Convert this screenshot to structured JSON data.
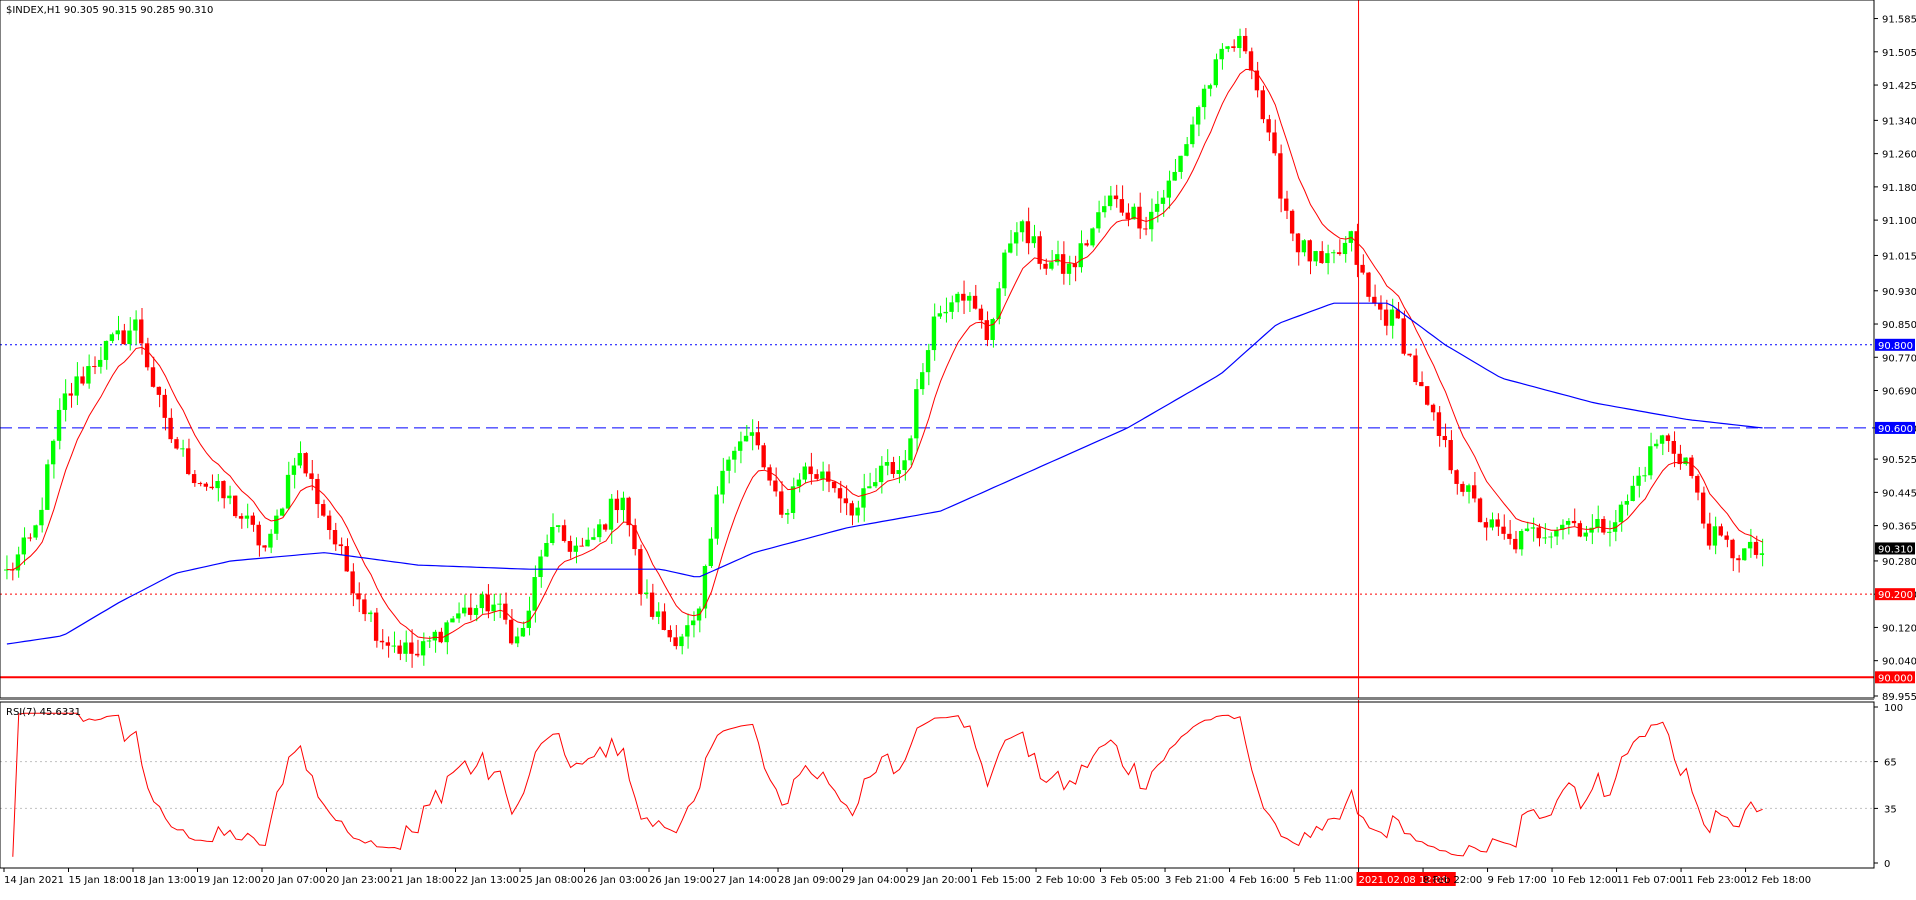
{
  "chart_data": [
    {
      "type": "candlestick",
      "title": "$INDEX,H1  90.305 90.315 90.285 90.310",
      "ylim": [
        89.955,
        91.62
      ],
      "y_ticks": [
        "91.585",
        "91.505",
        "91.425",
        "91.340",
        "91.260",
        "91.180",
        "91.100",
        "91.015",
        "90.930",
        "90.850",
        "90.770",
        "90.690",
        "90.600",
        "90.525",
        "90.445",
        "90.365",
        "90.280",
        "90.200",
        "90.120",
        "90.040",
        "89.955"
      ],
      "x_ticks": [
        "14 Jan 2021",
        "15 Jan 18:00",
        "18 Jan 13:00",
        "19 Jan 12:00",
        "20 Jan 07:00",
        "20 Jan 23:00",
        "21 Jan 18:00",
        "22 Jan 13:00",
        "25 Jan 08:00",
        "26 Jan 03:00",
        "26 Jan 19:00",
        "27 Jan 14:00",
        "28 Jan 09:00",
        "29 Jan 04:00",
        "29 Jan 20:00",
        "1 Feb 15:00",
        "2 Feb 10:00",
        "3 Feb 05:00",
        "3 Feb 21:00",
        "4 Feb 16:00",
        "5 Feb 11:00",
        "2021.02.08 12:00",
        "8 Feb 22:00",
        "9 Feb 17:00",
        "10 Feb 12:00",
        "11 Feb 07:00",
        "11 Feb 23:00",
        "12 Feb 18:00"
      ],
      "close_key": [
        [
          0,
          90.25
        ],
        [
          0.015,
          90.34
        ],
        [
          0.03,
          90.66
        ],
        [
          0.05,
          90.78
        ],
        [
          0.07,
          90.85
        ],
        [
          0.085,
          90.6
        ],
        [
          0.1,
          90.49
        ],
        [
          0.12,
          90.42
        ],
        [
          0.14,
          90.3
        ],
        [
          0.155,
          90.55
        ],
        [
          0.165,
          90.45
        ],
        [
          0.18,
          90.28
        ],
        [
          0.2,
          90.1
        ],
        [
          0.22,
          90.05
        ],
        [
          0.24,
          90.15
        ],
        [
          0.26,
          90.18
        ],
        [
          0.275,
          90.08
        ],
        [
          0.29,
          90.35
        ],
        [
          0.31,
          90.3
        ],
        [
          0.33,
          90.45
        ],
        [
          0.34,
          90.2
        ],
        [
          0.355,
          90.1
        ],
        [
          0.37,
          90.12
        ],
        [
          0.385,
          90.55
        ],
        [
          0.4,
          90.58
        ],
        [
          0.415,
          90.38
        ],
        [
          0.425,
          90.5
        ],
        [
          0.44,
          90.48
        ],
        [
          0.455,
          90.4
        ],
        [
          0.47,
          90.5
        ],
        [
          0.48,
          90.5
        ],
        [
          0.495,
          90.85
        ],
        [
          0.51,
          90.95
        ],
        [
          0.525,
          90.82
        ],
        [
          0.54,
          91.1
        ],
        [
          0.555,
          91.0
        ],
        [
          0.57,
          90.98
        ],
        [
          0.59,
          91.15
        ],
        [
          0.61,
          91.1
        ],
        [
          0.625,
          91.2
        ],
        [
          0.64,
          91.4
        ],
        [
          0.655,
          91.52
        ],
        [
          0.665,
          91.52
        ],
        [
          0.675,
          91.3
        ],
        [
          0.69,
          91.05
        ],
        [
          0.705,
          90.98
        ],
        [
          0.72,
          91.05
        ],
        [
          0.73,
          90.9
        ],
        [
          0.745,
          90.85
        ],
        [
          0.76,
          90.65
        ],
        [
          0.775,
          90.5
        ],
        [
          0.79,
          90.38
        ],
        [
          0.805,
          90.32
        ],
        [
          0.82,
          90.35
        ],
        [
          0.835,
          90.38
        ],
        [
          0.85,
          90.35
        ],
        [
          0.865,
          90.4
        ],
        [
          0.885,
          90.58
        ],
        [
          0.9,
          90.52
        ],
        [
          0.91,
          90.35
        ],
        [
          0.925,
          90.3
        ],
        [
          0.94,
          90.3
        ]
      ],
      "ema_fast_label": "",
      "ma_slow_key": [
        [
          0,
          90.08
        ],
        [
          0.03,
          90.1
        ],
        [
          0.06,
          90.18
        ],
        [
          0.09,
          90.25
        ],
        [
          0.12,
          90.28
        ],
        [
          0.17,
          90.3
        ],
        [
          0.22,
          90.27
        ],
        [
          0.28,
          90.26
        ],
        [
          0.32,
          90.26
        ],
        [
          0.35,
          90.26
        ],
        [
          0.37,
          90.24
        ],
        [
          0.4,
          90.3
        ],
        [
          0.45,
          90.36
        ],
        [
          0.5,
          90.4
        ],
        [
          0.55,
          90.5
        ],
        [
          0.6,
          90.6
        ],
        [
          0.65,
          90.73
        ],
        [
          0.68,
          90.85
        ],
        [
          0.71,
          90.9
        ],
        [
          0.74,
          90.9
        ],
        [
          0.77,
          90.8
        ],
        [
          0.8,
          90.72
        ],
        [
          0.85,
          90.66
        ],
        [
          0.9,
          90.62
        ],
        [
          0.94,
          90.6
        ]
      ],
      "horizontal_levels": [
        {
          "label": "90.800",
          "value": 90.8,
          "color": "#0000ff",
          "style": "dotted"
        },
        {
          "label": "90.600",
          "value": 90.6,
          "color": "#0000ff",
          "style": "dashed"
        },
        {
          "label": "90.200",
          "value": 90.2,
          "color": "#ff0000",
          "style": "dotted"
        },
        {
          "label": "90.000",
          "value": 90.0,
          "color": "#ff0000",
          "style": "solid"
        }
      ],
      "last_price_label": "90.310",
      "last_price": 90.31,
      "vertical_marker_x": "2021.02.08 12:00",
      "colors": {
        "bull": "#00ff00",
        "bear": "#ff0000",
        "fast_ma": "#ff0000",
        "slow_ma": "#0000ff"
      }
    },
    {
      "type": "line",
      "title": "RSI(7) 45.6331",
      "ylim": [
        0,
        100
      ],
      "y_ticks": [
        "100",
        "65",
        "35",
        "0"
      ],
      "levels": [
        65,
        35
      ],
      "color": "#ff0000"
    }
  ]
}
